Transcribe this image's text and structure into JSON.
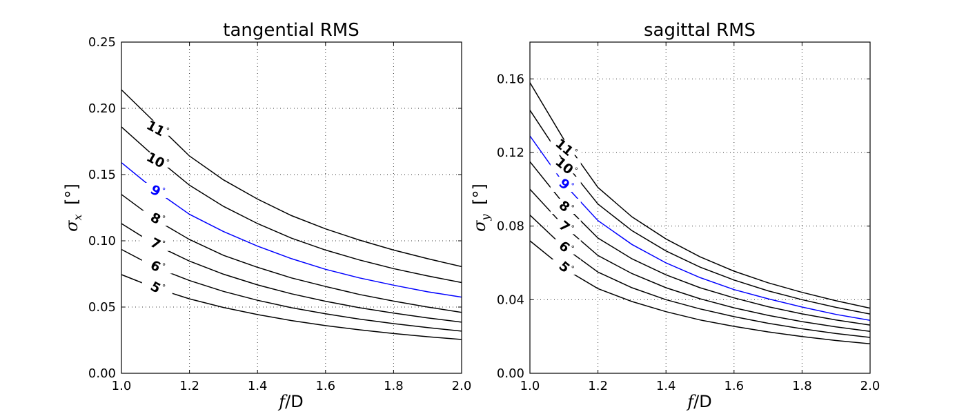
{
  "chart_data": [
    {
      "type": "line",
      "title": "tangential RMS",
      "xlabel": "f/D",
      "ylabel": "σx [°]",
      "xlim": [
        1.0,
        2.0
      ],
      "ylim": [
        0.0,
        0.25
      ],
      "xticks": [
        "1.0",
        "1.2",
        "1.4",
        "1.6",
        "1.8",
        "2.0"
      ],
      "yticks": [
        "0.00",
        "0.05",
        "0.10",
        "0.15",
        "0.20",
        "0.25"
      ],
      "grid": true,
      "x": [
        1.0,
        1.1,
        1.2,
        1.3,
        1.4,
        1.5,
        1.6,
        1.7,
        1.8,
        1.9,
        2.0
      ],
      "series": [
        {
          "name": "5°",
          "color": "#000000",
          "values": [
            0.0745,
            0.0643,
            0.0562,
            0.0497,
            0.0443,
            0.0398,
            0.036,
            0.0328,
            0.03,
            0.0276,
            0.0255
          ]
        },
        {
          "name": "6°",
          "color": "#000000",
          "values": [
            0.0935,
            0.08,
            0.07,
            0.0618,
            0.0551,
            0.0495,
            0.0449,
            0.0409,
            0.0375,
            0.0345,
            0.0318
          ]
        },
        {
          "name": "7°",
          "color": "#000000",
          "values": [
            0.113,
            0.097,
            0.0847,
            0.0748,
            0.0667,
            0.06,
            0.0544,
            0.0495,
            0.0454,
            0.0418,
            0.0386
          ]
        },
        {
          "name": "8°",
          "color": "#000000",
          "values": [
            0.135,
            0.116,
            0.101,
            0.089,
            0.08,
            0.072,
            0.0655,
            0.0595,
            0.0545,
            0.05,
            0.046
          ]
        },
        {
          "name": "9°",
          "color": "#0000ff",
          "values": [
            0.159,
            0.138,
            0.12,
            0.107,
            0.096,
            0.0865,
            0.0785,
            0.072,
            0.0665,
            0.0615,
            0.0575
          ]
        },
        {
          "name": "10°",
          "color": "#000000",
          "values": [
            0.186,
            0.163,
            0.142,
            0.126,
            0.113,
            0.102,
            0.093,
            0.0855,
            0.079,
            0.0735,
            0.0685
          ]
        },
        {
          "name": "11°",
          "color": "#000000",
          "values": [
            0.214,
            0.189,
            0.164,
            0.146,
            0.1315,
            0.119,
            0.109,
            0.1005,
            0.093,
            0.0865,
            0.0805
          ]
        }
      ],
      "contour_labels": [
        {
          "text": "5",
          "x": 1.105,
          "y": 0.064
        },
        {
          "text": "6",
          "x": 1.105,
          "y": 0.08
        },
        {
          "text": "7",
          "x": 1.105,
          "y": 0.097
        },
        {
          "text": "8",
          "x": 1.105,
          "y": 0.116
        },
        {
          "text": "9",
          "x": 1.105,
          "y": 0.137
        },
        {
          "text": "10",
          "x": 1.105,
          "y": 0.16
        },
        {
          "text": "11",
          "x": 1.105,
          "y": 0.184
        }
      ]
    },
    {
      "type": "line",
      "title": "sagittal RMS",
      "xlabel": "f/D",
      "ylabel": "σy [°]",
      "xlim": [
        1.0,
        2.0
      ],
      "ylim": [
        0.0,
        0.18
      ],
      "xticks": [
        "1.0",
        "1.2",
        "1.4",
        "1.6",
        "1.8",
        "2.0"
      ],
      "yticks": [
        "0.00",
        "0.04",
        "0.08",
        "0.12",
        "0.16"
      ],
      "grid": true,
      "x": [
        1.0,
        1.1,
        1.2,
        1.3,
        1.4,
        1.5,
        1.6,
        1.7,
        1.8,
        1.9,
        2.0
      ],
      "series": [
        {
          "name": "5°",
          "color": "#000000",
          "values": [
            0.072,
            0.057,
            0.046,
            0.039,
            0.0335,
            0.029,
            0.0255,
            0.0225,
            0.02,
            0.0178,
            0.016
          ]
        },
        {
          "name": "6°",
          "color": "#000000",
          "values": [
            0.086,
            0.0685,
            0.055,
            0.0465,
            0.04,
            0.035,
            0.0308,
            0.0272,
            0.0242,
            0.0216,
            0.0195
          ]
        },
        {
          "name": "7°",
          "color": "#000000",
          "values": [
            0.1,
            0.08,
            0.064,
            0.0542,
            0.0465,
            0.0405,
            0.0356,
            0.0315,
            0.0281,
            0.0252,
            0.0228
          ]
        },
        {
          "name": "8°",
          "color": "#000000",
          "values": [
            0.115,
            0.092,
            0.0735,
            0.0622,
            0.0535,
            0.0465,
            0.041,
            0.0362,
            0.0323,
            0.029,
            0.0262
          ]
        },
        {
          "name": "9°",
          "color": "#0000ff",
          "values": [
            0.129,
            0.103,
            0.083,
            0.07,
            0.06,
            0.052,
            0.0455,
            0.0405,
            0.036,
            0.032,
            0.0288
          ]
        },
        {
          "name": "10°",
          "color": "#000000",
          "values": [
            0.143,
            0.115,
            0.092,
            0.0775,
            0.0665,
            0.0577,
            0.0507,
            0.0448,
            0.04,
            0.0358,
            0.0322
          ]
        },
        {
          "name": "11°",
          "color": "#000000",
          "values": [
            0.158,
            0.127,
            0.101,
            0.085,
            0.073,
            0.0633,
            0.0555,
            0.0492,
            0.044,
            0.0394,
            0.0354
          ]
        }
      ],
      "contour_labels": [
        {
          "text": "5",
          "x": 1.105,
          "y": 0.057
        },
        {
          "text": "6",
          "x": 1.105,
          "y": 0.068
        },
        {
          "text": "7",
          "x": 1.105,
          "y": 0.079
        },
        {
          "text": "8",
          "x": 1.105,
          "y": 0.09
        },
        {
          "text": "9",
          "x": 1.105,
          "y": 0.102
        },
        {
          "text": "10",
          "x": 1.105,
          "y": 0.112
        },
        {
          "text": "11",
          "x": 1.105,
          "y": 0.122
        }
      ]
    }
  ]
}
